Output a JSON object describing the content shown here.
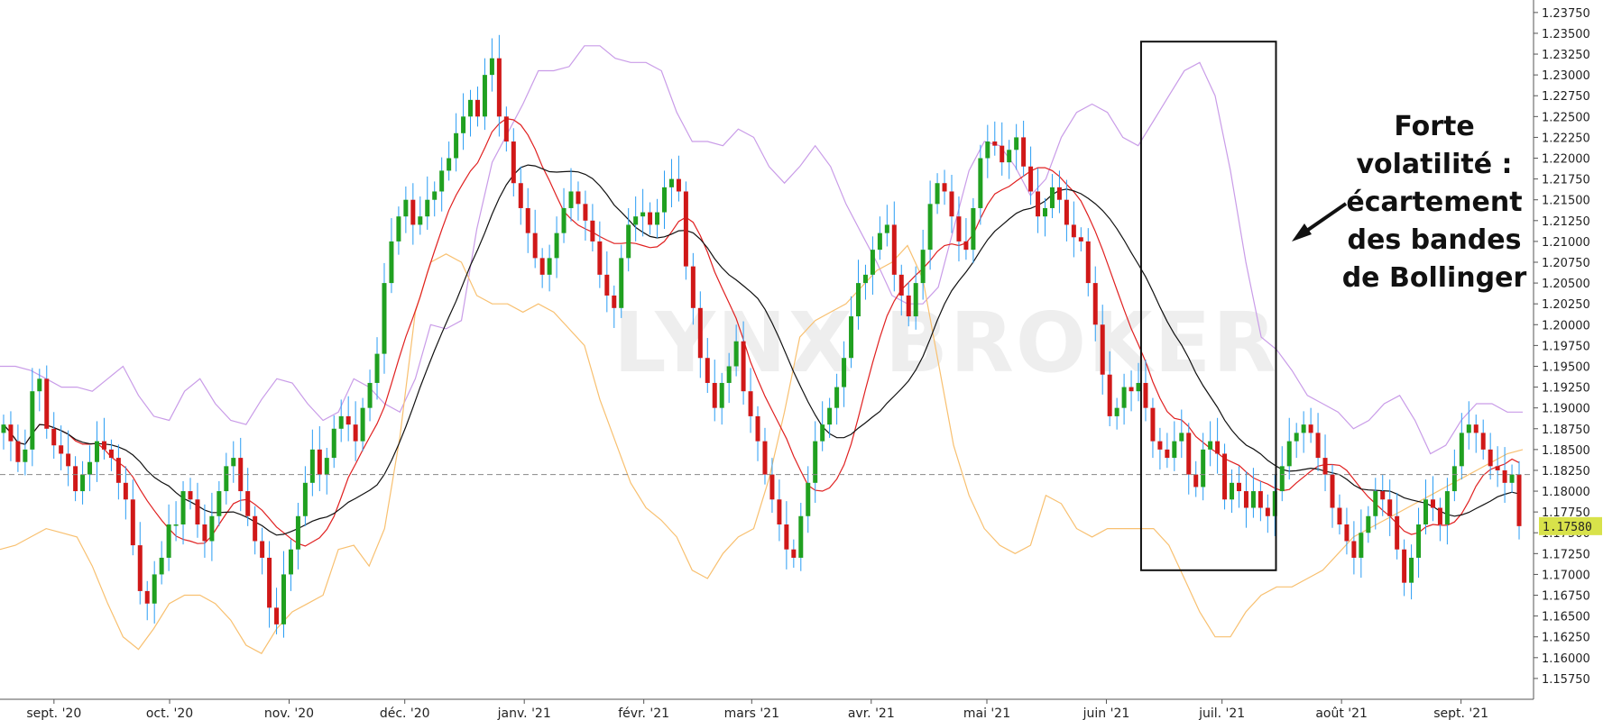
{
  "chart_data": {
    "type": "candlestick",
    "title": "",
    "xlabel": "",
    "ylabel": "",
    "ylim": [
      1.155,
      1.239
    ],
    "y_ticks": [
      "1.23750",
      "1.23500",
      "1.23250",
      "1.23000",
      "1.22750",
      "1.22500",
      "1.22250",
      "1.22000",
      "1.21750",
      "1.21500",
      "1.21250",
      "1.21000",
      "1.20750",
      "1.20500",
      "1.20250",
      "1.20000",
      "1.19750",
      "1.19500",
      "1.19250",
      "1.19000",
      "1.18750",
      "1.18500",
      "1.18250",
      "1.18000",
      "1.17750",
      "1.17500",
      "1.17250",
      "1.17000",
      "1.16750",
      "1.16500",
      "1.16250",
      "1.16000",
      "1.15750"
    ],
    "x_labels": [
      {
        "label": "sept. '20",
        "date": "2020-09-01"
      },
      {
        "label": "oct. '20",
        "date": "2020-10-01"
      },
      {
        "label": "nov. '20",
        "date": "2020-11-01"
      },
      {
        "label": "déc. '20",
        "date": "2020-12-01"
      },
      {
        "label": "janv. '21",
        "date": "2021-01-01"
      },
      {
        "label": "févr. '21",
        "date": "2021-02-01"
      },
      {
        "label": "mars '21",
        "date": "2021-03-01"
      },
      {
        "label": "avr. '21",
        "date": "2021-04-01"
      },
      {
        "label": "mai '21",
        "date": "2021-05-01"
      },
      {
        "label": "juin '21",
        "date": "2021-06-01"
      },
      {
        "label": "juil. '21",
        "date": "2021-07-01"
      },
      {
        "label": "août '21",
        "date": "2021-08-01"
      },
      {
        "label": "sept. '21",
        "date": "2021-09-01"
      }
    ],
    "price_series": {
      "x_range": [
        "2020-08-18",
        "2021-09-17"
      ],
      "close": [
        1.188,
        1.186,
        1.1835,
        1.185,
        1.192,
        1.1935,
        1.1875,
        1.1855,
        1.1845,
        1.183,
        1.18,
        1.182,
        1.1835,
        1.186,
        1.185,
        1.184,
        1.181,
        1.179,
        1.1735,
        1.168,
        1.1665,
        1.17,
        1.172,
        1.176,
        1.176,
        1.18,
        1.179,
        1.176,
        1.174,
        1.177,
        1.18,
        1.183,
        1.184,
        1.18,
        1.177,
        1.174,
        1.172,
        1.166,
        1.164,
        1.17,
        1.173,
        1.177,
        1.181,
        1.185,
        1.182,
        1.184,
        1.1875,
        1.189,
        1.188,
        1.186,
        1.19,
        1.193,
        1.1965,
        1.205,
        1.21,
        1.213,
        1.215,
        1.212,
        1.213,
        1.215,
        1.216,
        1.2185,
        1.22,
        1.223,
        1.225,
        1.227,
        1.225,
        1.23,
        1.232,
        1.225,
        1.222,
        1.217,
        1.214,
        1.211,
        1.208,
        1.206,
        1.208,
        1.211,
        1.214,
        1.216,
        1.2145,
        1.2125,
        1.21,
        1.206,
        1.2035,
        1.202,
        1.208,
        1.212,
        1.213,
        1.2135,
        1.212,
        1.2135,
        1.2165,
        1.2175,
        1.216,
        1.207,
        1.202,
        1.196,
        1.193,
        1.19,
        1.193,
        1.195,
        1.198,
        1.192,
        1.189,
        1.186,
        1.182,
        1.179,
        1.176,
        1.173,
        1.172,
        1.177,
        1.181,
        1.186,
        1.188,
        1.19,
        1.1925,
        1.196,
        1.201,
        1.205,
        1.206,
        1.209,
        1.211,
        1.212,
        1.206,
        1.2035,
        1.201,
        1.205,
        1.209,
        1.2145,
        1.217,
        1.216,
        1.213,
        1.21,
        1.209,
        1.214,
        1.22,
        1.222,
        1.2215,
        1.2195,
        1.221,
        1.2225,
        1.219,
        1.216,
        1.213,
        1.214,
        1.2165,
        1.215,
        1.212,
        1.2105,
        1.21,
        1.205,
        1.2,
        1.194,
        1.189,
        1.19,
        1.1925,
        1.192,
        1.193,
        1.19,
        1.186,
        1.185,
        1.184,
        1.186,
        1.187,
        1.182,
        1.1805,
        1.185,
        1.186,
        1.1845,
        1.179,
        1.181,
        1.18,
        1.178,
        1.18,
        1.178,
        1.177,
        1.18,
        1.183,
        1.186,
        1.187,
        1.188,
        1.187,
        1.184,
        1.182,
        1.178,
        1.176,
        1.174,
        1.172,
        1.175,
        1.177,
        1.18,
        1.179,
        1.177,
        1.173,
        1.169,
        1.172,
        1.176,
        1.179,
        1.178,
        1.176,
        1.18,
        1.183,
        1.187,
        1.188,
        1.187,
        1.185,
        1.183,
        1.1825,
        1.181,
        1.182,
        1.1758
      ]
    },
    "series": [
      {
        "name": "",
        "role": "upper-bollinger-band",
        "color": "#c99ce8",
        "values": [
          1.195,
          1.195,
          1.1945,
          1.1935,
          1.1925,
          1.1925,
          1.192,
          1.1935,
          1.195,
          1.1915,
          1.189,
          1.1885,
          1.192,
          1.1935,
          1.1905,
          1.1885,
          1.188,
          1.191,
          1.1935,
          1.193,
          1.1905,
          1.1885,
          1.1895,
          1.1935,
          1.1925,
          1.1905,
          1.1895,
          1.1935,
          1.2,
          1.1995,
          1.2005,
          1.2115,
          1.2195,
          1.223,
          1.2265,
          1.2305,
          1.2305,
          1.231,
          1.2335,
          1.2335,
          1.232,
          1.2315,
          1.2315,
          1.2305,
          1.2255,
          1.222,
          1.222,
          1.2215,
          1.2235,
          1.2225,
          1.219,
          1.217,
          1.219,
          1.2215,
          1.219,
          1.2145,
          1.211,
          1.2075,
          1.2035,
          1.2025,
          1.2025,
          1.2045,
          1.2115,
          1.2185,
          1.222,
          1.2215,
          1.219,
          1.2155,
          1.2175,
          1.2225,
          1.2255,
          1.2265,
          1.2255,
          1.2225,
          1.2215,
          1.2245,
          1.2275,
          1.2305,
          1.2315,
          1.2275,
          1.2185,
          1.2075,
          1.1985,
          1.197,
          1.1945,
          1.1915,
          1.1905,
          1.1895,
          1.1875,
          1.1885,
          1.1905,
          1.1915,
          1.1885,
          1.1845,
          1.1855,
          1.1885,
          1.1905,
          1.1905,
          1.1895,
          1.1895
        ]
      },
      {
        "name": "",
        "role": "lower-bollinger-band",
        "color": "#f8c070",
        "values": [
          1.173,
          1.1735,
          1.1745,
          1.1755,
          1.175,
          1.1745,
          1.171,
          1.1665,
          1.1625,
          1.161,
          1.1635,
          1.1665,
          1.1675,
          1.1675,
          1.1665,
          1.1645,
          1.1615,
          1.1605,
          1.1635,
          1.1655,
          1.1665,
          1.1675,
          1.173,
          1.1735,
          1.171,
          1.1755,
          1.1865,
          1.2015,
          1.2075,
          1.2085,
          1.2075,
          1.2035,
          1.2025,
          1.2025,
          1.2015,
          1.2025,
          1.2015,
          1.1995,
          1.1975,
          1.191,
          1.186,
          1.181,
          1.178,
          1.1765,
          1.1745,
          1.1705,
          1.1695,
          1.1725,
          1.1745,
          1.1755,
          1.1815,
          1.1895,
          1.1985,
          1.2005,
          1.2015,
          1.2025,
          1.2045,
          1.2065,
          1.2075,
          1.2095,
          1.2055,
          1.1955,
          1.1855,
          1.1795,
          1.1755,
          1.1735,
          1.1725,
          1.1735,
          1.1795,
          1.1785,
          1.1755,
          1.1745,
          1.1755,
          1.1755,
          1.1755,
          1.1755,
          1.1735,
          1.1695,
          1.1655,
          1.1625,
          1.1625,
          1.1655,
          1.1675,
          1.1685,
          1.1685,
          1.1695,
          1.1705,
          1.1725,
          1.1745,
          1.1755,
          1.1765,
          1.1775,
          1.1785,
          1.1795,
          1.1805,
          1.1815,
          1.1825,
          1.1835,
          1.1845,
          1.185
        ]
      },
      {
        "name": "",
        "role": "red-moving-average",
        "color": "#e02020",
        "values": []
      },
      {
        "name": "",
        "role": "black-moving-average",
        "color": "#111111",
        "values": []
      }
    ],
    "reference_line": {
      "value": 1.182,
      "style": "dashed"
    },
    "last_price_tag": "1.17580",
    "grid": false,
    "annotation_box": {
      "x_start": "2021-06-10",
      "x_end": "2021-07-15",
      "y_top": 1.234,
      "y_bottom": 1.1705
    },
    "annotation_text": [
      "Forte",
      "volatilité :",
      "écartement",
      "des bandes",
      "de Bollinger"
    ],
    "watermark": "LYNX BROKER",
    "colors": {
      "up": "#20a020",
      "down": "#d01818",
      "wick": "#2a9df4",
      "axis": "#555555"
    }
  }
}
